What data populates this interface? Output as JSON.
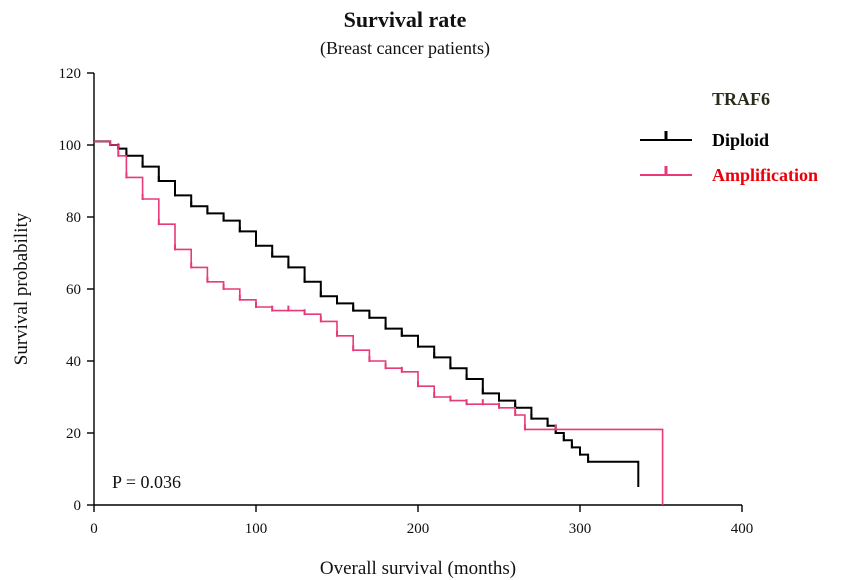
{
  "chart_data": {
    "type": "line",
    "subtype": "kaplan-meier",
    "title": "Survival rate",
    "subtitle": "(Breast cancer patients)",
    "xlabel": "Overall survival (months)",
    "ylabel": "Survival probability",
    "xlim": [
      0,
      400
    ],
    "ylim": [
      0,
      120
    ],
    "xticks": [
      0,
      100,
      200,
      300,
      400
    ],
    "yticks": [
      0,
      20,
      40,
      60,
      80,
      100,
      120
    ],
    "grid": false,
    "legend": {
      "title": "TRAF6",
      "title_color": "#2b2b1a",
      "placement": "top-right"
    },
    "annotation": "P = 0.036",
    "series": [
      {
        "name": "Diploid",
        "color": "#000000",
        "label_color": "#000000",
        "points": [
          [
            0,
            101
          ],
          [
            10,
            100
          ],
          [
            15,
            99
          ],
          [
            20,
            97
          ],
          [
            30,
            94
          ],
          [
            40,
            90
          ],
          [
            50,
            86
          ],
          [
            60,
            83
          ],
          [
            70,
            81
          ],
          [
            80,
            79
          ],
          [
            90,
            76
          ],
          [
            100,
            72
          ],
          [
            110,
            69
          ],
          [
            120,
            66
          ],
          [
            130,
            62
          ],
          [
            140,
            58
          ],
          [
            150,
            56
          ],
          [
            160,
            54
          ],
          [
            170,
            52
          ],
          [
            180,
            49
          ],
          [
            190,
            47
          ],
          [
            200,
            44
          ],
          [
            210,
            41
          ],
          [
            220,
            38
          ],
          [
            230,
            35
          ],
          [
            240,
            31
          ],
          [
            250,
            29
          ],
          [
            260,
            27
          ],
          [
            270,
            24
          ],
          [
            280,
            22
          ],
          [
            285,
            20
          ],
          [
            290,
            18
          ],
          [
            295,
            16
          ],
          [
            300,
            14
          ],
          [
            305,
            12
          ],
          [
            320,
            12
          ],
          [
            336,
            12
          ],
          [
            336,
            5
          ]
        ]
      },
      {
        "name": "Amplification",
        "color": "#e8397a",
        "label_color": "#e8000a",
        "points": [
          [
            0,
            101
          ],
          [
            10,
            100
          ],
          [
            15,
            97
          ],
          [
            20,
            91
          ],
          [
            30,
            85
          ],
          [
            40,
            78
          ],
          [
            50,
            71
          ],
          [
            60,
            66
          ],
          [
            70,
            62
          ],
          [
            80,
            60
          ],
          [
            90,
            57
          ],
          [
            100,
            55
          ],
          [
            110,
            54
          ],
          [
            120,
            54
          ],
          [
            130,
            53
          ],
          [
            140,
            51
          ],
          [
            150,
            47
          ],
          [
            160,
            43
          ],
          [
            170,
            40
          ],
          [
            180,
            38
          ],
          [
            190,
            37
          ],
          [
            200,
            33
          ],
          [
            210,
            30
          ],
          [
            220,
            29
          ],
          [
            230,
            28
          ],
          [
            240,
            28
          ],
          [
            250,
            27
          ],
          [
            260,
            25
          ],
          [
            266,
            21
          ],
          [
            285,
            21
          ],
          [
            300,
            21
          ],
          [
            351,
            21
          ],
          [
            351,
            0
          ]
        ]
      }
    ]
  }
}
